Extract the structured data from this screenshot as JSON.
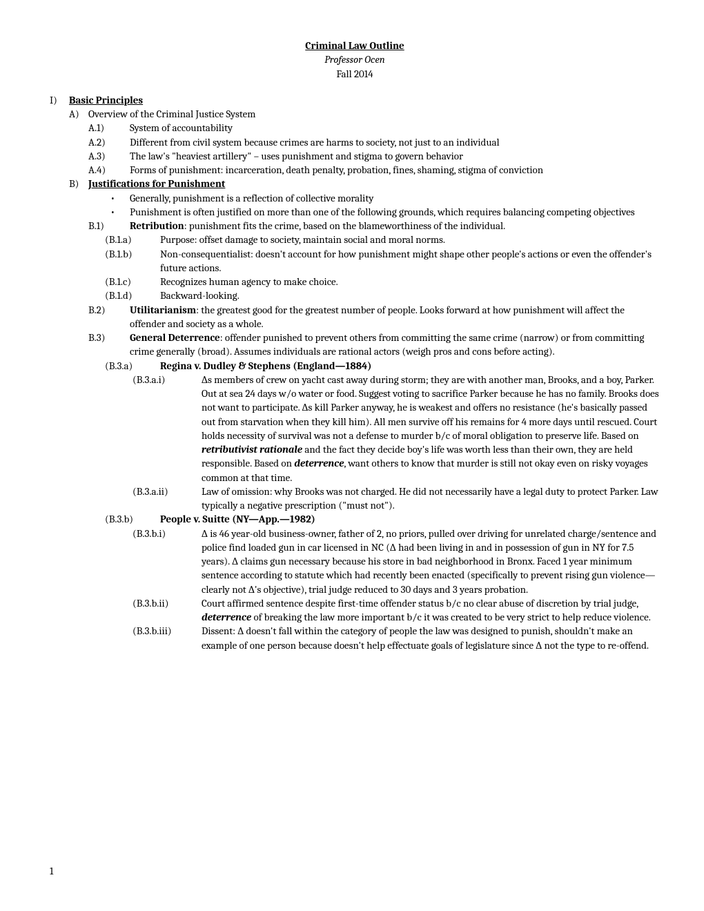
{
  "header": {
    "title": "Criminal Law Outline",
    "professor": "Professor Ocen",
    "term": "Fall 2014"
  },
  "outline": {
    "I": {
      "marker": "I)",
      "title": "Basic Principles",
      "A": {
        "marker": "A)",
        "title": "Overview of the Criminal Justice System",
        "A1": {
          "marker": "A.1)",
          "text": "System of accountability"
        },
        "A2": {
          "marker": "A.2)",
          "text": "Different from civil system because crimes are harms to society, not just to an individual"
        },
        "A3": {
          "marker": "A.3)",
          "text": "The law's \"heaviest artillery\" – uses punishment and stigma to govern behavior"
        },
        "A4": {
          "marker": "A.4)",
          "text": "Forms of punishment: incarceration, death penalty, probation, fines, shaming, stigma of conviction"
        }
      },
      "B": {
        "marker": "B)",
        "title": "Justifications for Punishment",
        "bullets": {
          "b1": "Generally, punishment is a reflection of collective morality",
          "b2": "Punishment is often justified on more than one of the following grounds, which requires balancing competing objectives"
        },
        "B1": {
          "marker": "B.1)",
          "lead": "Retribution",
          "rest": ": punishment fits the crime, based on the blameworthiness of the individual.",
          "a": {
            "marker": "(B.1.a)",
            "text": "Purpose: offset damage to society, maintain social and moral norms."
          },
          "b": {
            "marker": "(B.1.b)",
            "text": "Non-consequentialist: doesn't account for how punishment might shape other people's actions or even the offender's future actions."
          },
          "c": {
            "marker": "(B.1.c)",
            "text": "Recognizes human agency to make choice."
          },
          "d": {
            "marker": "(B.1.d)",
            "text": "Backward-looking."
          }
        },
        "B2": {
          "marker": "B.2)",
          "lead": "Utilitarianism",
          "rest": ": the greatest good for the greatest number of people.  Looks forward at how punishment will affect the offender and society as a whole."
        },
        "B3": {
          "marker": "B.3)",
          "lead": "General Deterrence",
          "rest": ": offender punished to prevent others from committing the same crime (narrow) or from committing crime generally (broad).  Assumes individuals are rational actors (weigh pros and cons before acting).",
          "a": {
            "marker": "(B.3.a)",
            "case": "Regina v. Dudley & Stephens (England—1884)",
            "i": {
              "marker": "(B.3.a.i)",
              "pre": "∆s members of crew on yacht cast away during storm; they are with another man, Brooks, and a boy, Parker.  Out at sea 24 days w/o water or food.  Suggest voting to sacrifice Parker because he has no family.  Brooks does not want to participate.  ∆s kill Parker anyway, he is weakest and offers no resistance (he's basically passed out from starvation when they kill him).  All men survive off his remains for 4 more days until rescued.  Court holds necessity of survival was not a defense to murder b/c of moral obligation to preserve life.  Based on ",
              "em1": "retributivist rationale",
              "mid": " and the fact they decide boy's life was worth less than their own, they are held responsible.  Based on ",
              "em2": "deterrence",
              "post": ", want others to know that murder is still not okay even on risky voyages common at that time."
            },
            "ii": {
              "marker": "(B.3.a.ii)",
              "text": "Law of omission: why Brooks was not charged.  He did not necessarily have a legal duty to protect Parker.  Law typically a negative prescription (\"must not\")."
            }
          },
          "b": {
            "marker": "(B.3.b)",
            "case": "People v. Suitte (NY—App.—1982)",
            "i": {
              "marker": "(B.3.b.i)",
              "text": "∆ is 46 year-old business-owner, father of 2, no priors, pulled over driving for unrelated charge/sentence and police find loaded gun in car licensed in NC (∆ had been living in and in possession of gun in NY for 7.5 years).  ∆ claims gun necessary because his store in bad neighborhood in Bronx.  Faced 1 year minimum sentence according to statute which had recently been enacted (specifically to prevent rising gun violence—clearly not ∆'s objective), trial judge reduced to 30 days and 3 years probation."
            },
            "ii": {
              "marker": "(B.3.b.ii)",
              "pre": "Court affirmed sentence despite first-time offender status b/c no clear abuse of discretion by trial judge, ",
              "em1": "deterrence",
              "post": " of breaking the law more important b/c it was created to be very strict to help reduce violence."
            },
            "iii": {
              "marker": "(B.3.b.iii)",
              "text": "Dissent: ∆ doesn't fall within the category of people the law was designed to punish, shouldn't make an example of one person because doesn't help effectuate goals of legislature since ∆ not the type to re-offend."
            }
          }
        }
      }
    }
  },
  "page_number": "1"
}
